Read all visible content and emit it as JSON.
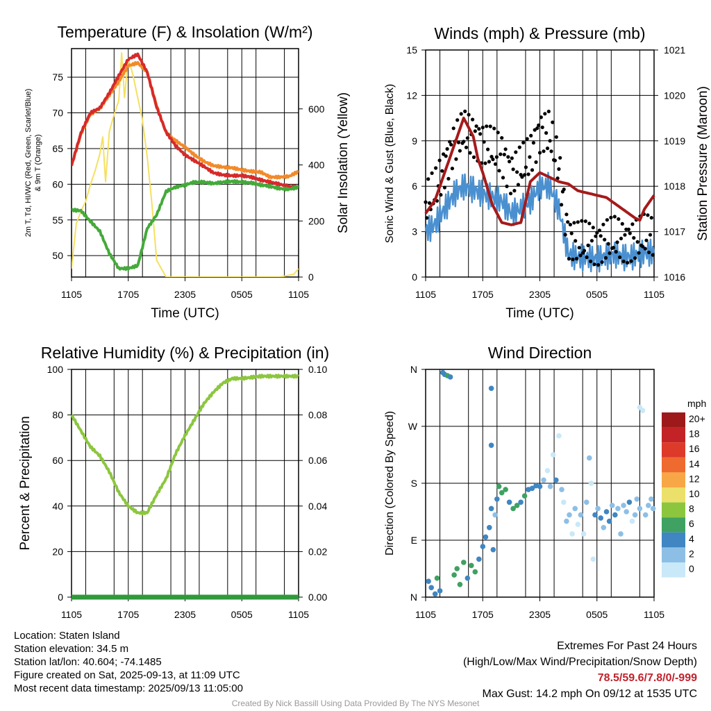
{
  "time_ticks": [
    "1105",
    "1705",
    "2305",
    "0505",
    "1105"
  ],
  "chart_data": [
    {
      "id": "temp",
      "type": "line",
      "title": "Temperature (F) & Insolation (W/m²)",
      "xlabel": "Time (UTC)",
      "ylabel_left": "2m T, Td, HI/WC (Red, Green, Scarlet/Blue) & 9m T (Orange)",
      "ylabel_right": "Solar Insolation (Yellow)",
      "x_range_hours": [
        0,
        24
      ],
      "ylim_left": [
        47,
        79
      ],
      "ylim_right": [
        0,
        815
      ],
      "yticks_left": [
        "50",
        "55",
        "60",
        "65",
        "70",
        "75"
      ],
      "yticks_right": [
        "0",
        "200",
        "400",
        "600"
      ],
      "series": [
        {
          "color": "#f28a2a",
          "axis": "left",
          "x": [
            0,
            1,
            2,
            3,
            4,
            5,
            6,
            7,
            8,
            9,
            10,
            11,
            12,
            13,
            14,
            15,
            16,
            17,
            18,
            19,
            20,
            21,
            22,
            23,
            24
          ],
          "y": [
            62.6,
            67,
            69.8,
            70.6,
            72.5,
            74.4,
            76.6,
            77,
            75.7,
            71,
            67.2,
            66.1,
            65.2,
            64.1,
            63.2,
            62.6,
            62.4,
            62.3,
            62,
            61.8,
            61.7,
            61,
            61,
            61.1,
            61.8
          ]
        },
        {
          "color": "#d62a2a",
          "axis": "left",
          "x": [
            0,
            1,
            2,
            3,
            4,
            5,
            6,
            7,
            8,
            9,
            10,
            11,
            12,
            13,
            14,
            15,
            16,
            17,
            18,
            19,
            20,
            21,
            22,
            23,
            24
          ],
          "y": [
            62.6,
            67.2,
            70,
            70.7,
            72.8,
            75.2,
            77.5,
            78.2,
            75.7,
            70.8,
            67.3,
            65.4,
            64.1,
            63.3,
            62.5,
            61.6,
            61.3,
            61.2,
            61.2,
            61,
            60.6,
            60.3,
            60,
            59.7,
            59.6
          ]
        },
        {
          "color": "#44aa3a",
          "axis": "left",
          "x": [
            0,
            1,
            2,
            3,
            4,
            5,
            6,
            7,
            8,
            9,
            10,
            11,
            12,
            13,
            14,
            15,
            16,
            17,
            18,
            19,
            20,
            21,
            22,
            23,
            24
          ],
          "y": [
            56.4,
            56.3,
            54.8,
            53.4,
            50.3,
            48.2,
            48.2,
            48.6,
            53.8,
            55.7,
            59,
            59.6,
            59.9,
            60.3,
            60.3,
            60.1,
            60.3,
            60.4,
            60.3,
            60.2,
            59.9,
            59.7,
            59.4,
            59.3,
            59.6
          ]
        },
        {
          "color": "#f5e060",
          "axis": "right",
          "x": [
            0,
            0.5,
            1,
            1.5,
            2,
            2.5,
            3,
            3.3,
            3.6,
            4,
            4.5,
            5,
            5.3,
            5.6,
            6,
            6.5,
            7,
            7.5,
            8,
            8.5,
            9,
            10,
            11,
            12,
            14,
            16,
            18,
            20,
            22,
            23.5,
            24
          ],
          "y": [
            30,
            190,
            235,
            270,
            330,
            380,
            440,
            500,
            340,
            520,
            580,
            630,
            800,
            640,
            780,
            720,
            640,
            560,
            430,
            260,
            60,
            0,
            0,
            0,
            0,
            0,
            0,
            0,
            0,
            10,
            30
          ]
        }
      ]
    },
    {
      "id": "winds",
      "type": "line",
      "title": "Winds (mph) & Pressure (mb)",
      "xlabel": "Time (UTC)",
      "ylabel_left": "Sonic Wind & Gust (Blue, Black)",
      "ylabel_right": "Station Pressure (Maroon)",
      "x_range_hours": [
        0,
        24
      ],
      "ylim_left": [
        0,
        15
      ],
      "ylim_right": [
        1016,
        1021
      ],
      "yticks_left": [
        "0",
        "3",
        "6",
        "9",
        "12",
        "15"
      ],
      "yticks_right": [
        "1016",
        "1017",
        "1018",
        "1019",
        "1020",
        "1021"
      ],
      "series": [
        {
          "color": "#4a90d0",
          "axis": "left",
          "x": [
            0,
            1,
            2,
            3,
            4,
            5,
            6,
            7,
            8,
            9,
            10,
            11,
            12,
            13,
            14,
            15,
            16,
            17,
            18,
            19,
            20,
            21,
            22,
            23,
            24
          ],
          "y": [
            3,
            3.5,
            4.5,
            5.5,
            6,
            5.8,
            5.5,
            5.3,
            5,
            4.2,
            4.5,
            5,
            6,
            6,
            4.5,
            1.5,
            1.3,
            1.3,
            1.2,
            1.4,
            1.5,
            1.3,
            1.4,
            1.6,
            1.6
          ]
        },
        {
          "color": "#a61a1a",
          "axis": "right",
          "x": [
            0,
            1,
            2,
            3,
            4,
            5,
            5.5,
            6,
            7,
            8,
            9,
            10,
            11,
            12,
            13,
            14,
            15,
            16,
            17,
            18,
            19,
            20,
            21,
            22,
            22.5,
            23,
            24
          ],
          "y": [
            1017.4,
            1017.7,
            1018.3,
            1018.9,
            1019.5,
            1019.1,
            1018.6,
            1018.3,
            1017.6,
            1017.2,
            1017.15,
            1017.2,
            1018.1,
            1018.3,
            1018.2,
            1018.1,
            1018.05,
            1017.9,
            1017.85,
            1017.8,
            1017.75,
            1017.6,
            1017.45,
            1017.3,
            1017.25,
            1017.5,
            1017.8
          ]
        }
      ]
    },
    {
      "id": "rh",
      "type": "line",
      "title": "Relative Humidity (%) & Precipitation (in)",
      "xlabel": "",
      "ylabel_left": "Percent & Precipitation",
      "ylabel_right": "",
      "x_range_hours": [
        0,
        24
      ],
      "ylim_left": [
        0,
        100
      ],
      "ylim_right": [
        0,
        0.1
      ],
      "yticks_left": [
        "0",
        "20",
        "40",
        "60",
        "80",
        "100"
      ],
      "yticks_right": [
        "0.00",
        "0.02",
        "0.04",
        "0.06",
        "0.08",
        "0.10"
      ],
      "series": [
        {
          "color": "#8cc63f",
          "axis": "left",
          "x": [
            0,
            1,
            2,
            3,
            4,
            5,
            6,
            7,
            8,
            9,
            10,
            11,
            12,
            13,
            14,
            15,
            16,
            17,
            18,
            19,
            20,
            21,
            22,
            23,
            24
          ],
          "y": [
            80,
            73,
            66,
            62,
            55,
            46,
            40,
            37,
            37,
            45,
            52,
            63,
            71,
            78,
            85,
            90,
            94,
            96,
            96,
            96.5,
            97,
            97,
            97,
            97,
            97
          ]
        },
        {
          "color": "#2e9a3a",
          "axis": "left",
          "x": [
            0,
            24
          ],
          "y": [
            0,
            0
          ]
        }
      ]
    },
    {
      "id": "wdir",
      "type": "scatter",
      "title": "Wind Direction",
      "xlabel": "",
      "ylabel_left": "Direction (Colored By Speed)",
      "x_range_hours": [
        0,
        24
      ],
      "ylim": [
        0,
        360
      ],
      "yticks": [
        "N",
        "E",
        "S",
        "W",
        "N"
      ],
      "colorbar": {
        "unit": "mph",
        "labels": [
          "20+",
          "18",
          "16",
          "14",
          "12",
          "10",
          "8",
          "6",
          "4",
          "2",
          "0"
        ],
        "colors": [
          "#9e1a1a",
          "#c32326",
          "#dd3a2a",
          "#ef6a2e",
          "#f7a746",
          "#ebe069",
          "#8cc63f",
          "#3fa162",
          "#3f86c2",
          "#8dbfe6",
          "#c9e8f8"
        ]
      },
      "points": [
        {
          "x": 0.3,
          "y": 25,
          "c": "#3f86c2"
        },
        {
          "x": 0.6,
          "y": 15,
          "c": "#3f86c2"
        },
        {
          "x": 1.0,
          "y": 5,
          "c": "#3f86c2"
        },
        {
          "x": 1.2,
          "y": 30,
          "c": "#3fa162"
        },
        {
          "x": 1.5,
          "y": 10,
          "c": "#3f86c2"
        },
        {
          "x": 1.8,
          "y": 355,
          "c": "#3f86c2"
        },
        {
          "x": 2.0,
          "y": 352,
          "c": "#3f86c2"
        },
        {
          "x": 2.3,
          "y": 350,
          "c": "#3fa162"
        },
        {
          "x": 2.6,
          "y": 348,
          "c": "#3f86c2"
        },
        {
          "x": 3.0,
          "y": 35,
          "c": "#3fa162"
        },
        {
          "x": 3.3,
          "y": 45,
          "c": "#3fa162"
        },
        {
          "x": 3.6,
          "y": 20,
          "c": "#3fa162"
        },
        {
          "x": 4.0,
          "y": 55,
          "c": "#3fa162"
        },
        {
          "x": 4.4,
          "y": 30,
          "c": "#3f86c2"
        },
        {
          "x": 4.8,
          "y": 50,
          "c": "#3fa162"
        },
        {
          "x": 5.2,
          "y": 40,
          "c": "#3fa162"
        },
        {
          "x": 5.6,
          "y": 60,
          "c": "#3f86c2"
        },
        {
          "x": 6.0,
          "y": 80,
          "c": "#3f86c2"
        },
        {
          "x": 6.3,
          "y": 95,
          "c": "#3f86c2"
        },
        {
          "x": 6.7,
          "y": 110,
          "c": "#3f86c2"
        },
        {
          "x": 6.9,
          "y": 140,
          "c": "#3f86c2"
        },
        {
          "x": 6.9,
          "y": 240,
          "c": "#3f86c2"
        },
        {
          "x": 6.9,
          "y": 330,
          "c": "#3f86c2"
        },
        {
          "x": 7.1,
          "y": 75,
          "c": "#3f86c2"
        },
        {
          "x": 7.3,
          "y": 130,
          "c": "#8dbfe6"
        },
        {
          "x": 7.5,
          "y": 155,
          "c": "#3f86c2"
        },
        {
          "x": 7.7,
          "y": 175,
          "c": "#3fa162"
        },
        {
          "x": 8.0,
          "y": 165,
          "c": "#3fa162"
        },
        {
          "x": 8.4,
          "y": 170,
          "c": "#3fa162"
        },
        {
          "x": 8.8,
          "y": 150,
          "c": "#3f86c2"
        },
        {
          "x": 9.2,
          "y": 140,
          "c": "#3fa162"
        },
        {
          "x": 9.6,
          "y": 145,
          "c": "#3fa162"
        },
        {
          "x": 10.0,
          "y": 150,
          "c": "#3f86c2"
        },
        {
          "x": 10.4,
          "y": 160,
          "c": "#3fa162"
        },
        {
          "x": 10.8,
          "y": 170,
          "c": "#3f86c2"
        },
        {
          "x": 11.2,
          "y": 172,
          "c": "#3f86c2"
        },
        {
          "x": 11.6,
          "y": 176,
          "c": "#3f86c2"
        },
        {
          "x": 12.0,
          "y": 175,
          "c": "#3f86c2"
        },
        {
          "x": 12.4,
          "y": 185,
          "c": "#8dbfe6"
        },
        {
          "x": 12.8,
          "y": 200,
          "c": "#c9e8f8"
        },
        {
          "x": 13.1,
          "y": 175,
          "c": "#8dbfe6"
        },
        {
          "x": 13.4,
          "y": 225,
          "c": "#c9e8f8"
        },
        {
          "x": 13.7,
          "y": 185,
          "c": "#3f86c2"
        },
        {
          "x": 14.0,
          "y": 255,
          "c": "#c9e8f8"
        },
        {
          "x": 14.3,
          "y": 170,
          "c": "#8dbfe6"
        },
        {
          "x": 14.5,
          "y": 150,
          "c": "#c9e8f8"
        },
        {
          "x": 14.8,
          "y": 120,
          "c": "#8dbfe6"
        },
        {
          "x": 15.1,
          "y": 130,
          "c": "#8dbfe6"
        },
        {
          "x": 15.4,
          "y": 100,
          "c": "#c9e8f8"
        },
        {
          "x": 15.7,
          "y": 140,
          "c": "#8dbfe6"
        },
        {
          "x": 16.0,
          "y": 115,
          "c": "#c9e8f8"
        },
        {
          "x": 16.3,
          "y": 130,
          "c": "#8dbfe6"
        },
        {
          "x": 16.6,
          "y": 100,
          "c": "#c9e8f8"
        },
        {
          "x": 16.9,
          "y": 150,
          "c": "#8dbfe6"
        },
        {
          "x": 17.2,
          "y": 220,
          "c": "#8dbfe6"
        },
        {
          "x": 17.4,
          "y": 180,
          "c": "#c9e8f8"
        },
        {
          "x": 17.6,
          "y": 60,
          "c": "#c9e8f8"
        },
        {
          "x": 17.8,
          "y": 130,
          "c": "#3f86c2"
        },
        {
          "x": 18.1,
          "y": 140,
          "c": "#8dbfe6"
        },
        {
          "x": 18.4,
          "y": 125,
          "c": "#3f86c2"
        },
        {
          "x": 18.7,
          "y": 110,
          "c": "#8dbfe6"
        },
        {
          "x": 19.0,
          "y": 135,
          "c": "#3f86c2"
        },
        {
          "x": 19.3,
          "y": 120,
          "c": "#3f86c2"
        },
        {
          "x": 19.6,
          "y": 145,
          "c": "#8dbfe6"
        },
        {
          "x": 19.9,
          "y": 130,
          "c": "#3f86c2"
        },
        {
          "x": 20.2,
          "y": 140,
          "c": "#8dbfe6"
        },
        {
          "x": 20.5,
          "y": 100,
          "c": "#8dbfe6"
        },
        {
          "x": 20.8,
          "y": 145,
          "c": "#8dbfe6"
        },
        {
          "x": 21.1,
          "y": 135,
          "c": "#8dbfe6"
        },
        {
          "x": 21.4,
          "y": 150,
          "c": "#3f86c2"
        },
        {
          "x": 21.7,
          "y": 120,
          "c": "#c9e8f8"
        },
        {
          "x": 22.0,
          "y": 130,
          "c": "#8dbfe6"
        },
        {
          "x": 22.2,
          "y": 155,
          "c": "#8dbfe6"
        },
        {
          "x": 22.5,
          "y": 140,
          "c": "#8dbfe6"
        },
        {
          "x": 22.5,
          "y": 300,
          "c": "#c9e8f8"
        },
        {
          "x": 22.8,
          "y": 295,
          "c": "#c9e8f8"
        },
        {
          "x": 23.1,
          "y": 130,
          "c": "#8dbfe6"
        },
        {
          "x": 23.4,
          "y": 145,
          "c": "#8dbfe6"
        },
        {
          "x": 23.7,
          "y": 155,
          "c": "#8dbfe6"
        },
        {
          "x": 23.9,
          "y": 140,
          "c": "#8dbfe6"
        }
      ]
    }
  ],
  "info": {
    "location": "Location: Staten Island",
    "elevation": "Station elevation: 34.5 m",
    "latlon": "Station lat/lon: 40.604; -74.1485",
    "created": "Figure created on Sat, 2025-09-13, at 11:09 UTC",
    "recent": "Most recent data timestamp: 2025/09/13 11:05:00"
  },
  "extremes": {
    "title": "Extremes For Past 24 Hours",
    "subtitle": "(High/Low/Max Wind/Precipitation/Snow Depth)",
    "values": "78.5/59.6/7.8/0/-999",
    "gust": "Max Gust: 14.2 mph On 09/12 at 1535 UTC"
  },
  "credit": "Created By Nick Bassill Using Data Provided By The NYS Mesonet"
}
